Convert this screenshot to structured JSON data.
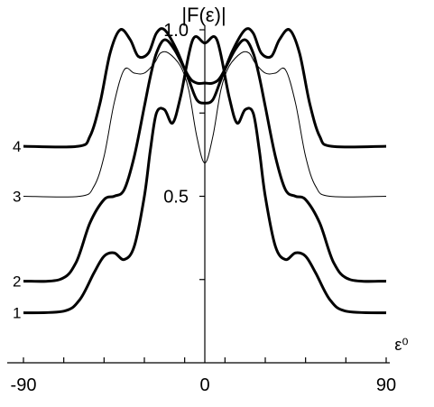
{
  "chart_data": {
    "type": "line",
    "title": "",
    "ylabel": "|F(ε)|",
    "xlabel": "ε⁰",
    "xlim": [
      -90,
      90
    ],
    "ylim": [
      0,
      1.05
    ],
    "x_ticks": [
      -90,
      -70,
      -50,
      -30,
      -10,
      10,
      30,
      50,
      70,
      90
    ],
    "x_tick_labels": [
      {
        "x": -90,
        "label": "-90"
      },
      {
        "x": 0,
        "label": "0"
      },
      {
        "x": 90,
        "label": "90"
      }
    ],
    "y_ticks": [
      0.25,
      0.5,
      0.75,
      1.0
    ],
    "y_tick_labels": [
      {
        "y": 1.0,
        "label": "1.0"
      },
      {
        "y": 0.5,
        "label": "0.5"
      }
    ],
    "grid": false,
    "series": [
      {
        "name": "1",
        "stroke": "bold",
        "x": [
          -90,
          -70,
          -62,
          -55,
          -50,
          -45,
          -40,
          -35,
          -30,
          -27,
          -24,
          -20,
          -16,
          -12,
          -6,
          0,
          6,
          12,
          16,
          20,
          24,
          27,
          30,
          35,
          40,
          45,
          50,
          55,
          62,
          70,
          90
        ],
        "y": [
          0.15,
          0.155,
          0.19,
          0.27,
          0.32,
          0.33,
          0.31,
          0.35,
          0.5,
          0.64,
          0.75,
          0.76,
          0.72,
          0.8,
          0.97,
          0.96,
          0.97,
          0.8,
          0.72,
          0.76,
          0.75,
          0.64,
          0.5,
          0.35,
          0.31,
          0.33,
          0.32,
          0.27,
          0.19,
          0.155,
          0.15
        ]
      },
      {
        "name": "2",
        "stroke": "bold",
        "x": [
          -90,
          -72,
          -64,
          -57,
          -50,
          -45,
          -40,
          -35,
          -30,
          -27,
          -24,
          -20,
          -15,
          -8,
          -4,
          0,
          4,
          8,
          15,
          20,
          24,
          27,
          30,
          35,
          40,
          45,
          50,
          57,
          64,
          72,
          90
        ],
        "y": [
          0.245,
          0.25,
          0.3,
          0.42,
          0.49,
          0.5,
          0.52,
          0.62,
          0.77,
          0.86,
          0.93,
          0.97,
          0.94,
          0.86,
          0.84,
          0.84,
          0.84,
          0.86,
          0.94,
          0.97,
          0.93,
          0.86,
          0.77,
          0.62,
          0.52,
          0.5,
          0.49,
          0.42,
          0.3,
          0.25,
          0.245
        ]
      },
      {
        "name": "3",
        "stroke": "thin",
        "x": [
          -90,
          -62,
          -55,
          -50,
          -45,
          -40,
          -35,
          -30,
          -25,
          -22,
          -18,
          -12,
          -8,
          -4,
          0,
          4,
          8,
          12,
          18,
          22,
          25,
          30,
          35,
          40,
          45,
          50,
          55,
          62,
          90
        ],
        "y": [
          0.5,
          0.5,
          0.53,
          0.62,
          0.78,
          0.88,
          0.87,
          0.87,
          0.9,
          0.93,
          0.93,
          0.89,
          0.82,
          0.68,
          0.6,
          0.68,
          0.82,
          0.89,
          0.93,
          0.93,
          0.9,
          0.87,
          0.87,
          0.88,
          0.78,
          0.62,
          0.53,
          0.5,
          0.5
        ]
      },
      {
        "name": "4",
        "stroke": "bold",
        "x": [
          -90,
          -63,
          -57,
          -52,
          -47,
          -42,
          -37,
          -33,
          -28,
          -24,
          -20,
          -14,
          -8,
          -4,
          0,
          4,
          8,
          14,
          20,
          24,
          28,
          33,
          37,
          42,
          47,
          52,
          57,
          63,
          90
        ],
        "y": [
          0.65,
          0.65,
          0.68,
          0.78,
          0.93,
          1.0,
          0.97,
          0.92,
          0.93,
          0.99,
          1.0,
          0.94,
          0.85,
          0.79,
          0.78,
          0.79,
          0.85,
          0.94,
          1.0,
          0.99,
          0.93,
          0.92,
          0.97,
          1.0,
          0.93,
          0.78,
          0.68,
          0.65,
          0.65
        ]
      }
    ]
  }
}
